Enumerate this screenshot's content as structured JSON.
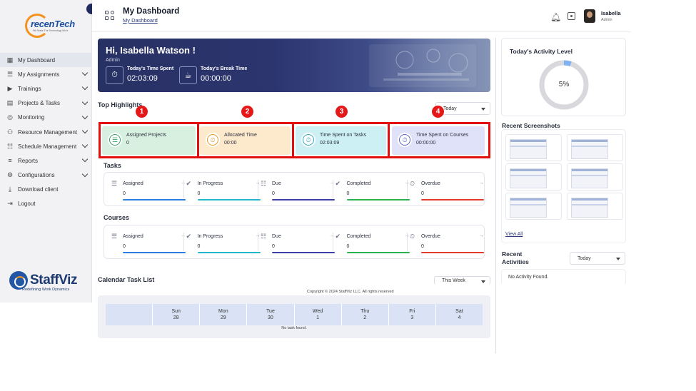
{
  "brand": {
    "top_logo_name": "recenTech",
    "top_logo_tag": "We Make The Technology Work",
    "bottom_logo_name": "StaffViz",
    "bottom_logo_tag": "Redefining Work Dynamics"
  },
  "sidebar": {
    "items": [
      {
        "label": "My Dashboard",
        "icon": "dashboard-icon",
        "active": true
      },
      {
        "label": "My Assignments",
        "icon": "assignments-icon"
      },
      {
        "label": "Trainings",
        "icon": "trainings-icon"
      },
      {
        "label": "Projects & Tasks",
        "icon": "projects-icon"
      },
      {
        "label": "Monitoring",
        "icon": "monitoring-icon"
      },
      {
        "label": "Resource Management",
        "icon": "resource-icon"
      },
      {
        "label": "Schedule Management",
        "icon": "schedule-icon"
      },
      {
        "label": "Reports",
        "icon": "reports-icon"
      },
      {
        "label": "Configurations",
        "icon": "configurations-icon"
      },
      {
        "label": "Download client",
        "icon": "download-icon"
      },
      {
        "label": "Logout",
        "icon": "logout-icon"
      }
    ]
  },
  "header": {
    "title": "My Dashboard",
    "breadcrumb": "My Dashboard",
    "user_name": "Isabella",
    "user_role": "Admin"
  },
  "banner": {
    "greeting": "Hi, Isabella Watson !",
    "role": "Admin",
    "time_spent_label": "Today's Time Spent",
    "time_spent_value": "02:03:09",
    "break_label": "Today's Break Time",
    "break_value": "00:00:00"
  },
  "highlights": {
    "title": "Top Highlights",
    "filter": "Today",
    "markers": [
      "1",
      "2",
      "3",
      "4"
    ],
    "cards": [
      {
        "label": "Assigned Projects",
        "value": "0",
        "color": "#d8f0df",
        "icon_color": "#3aa363"
      },
      {
        "label": "Allocated Time",
        "value": "00:00",
        "color": "#fde9cc",
        "icon_color": "#e39a2b"
      },
      {
        "label": "Time Spent on Tasks",
        "value": "02:03:09",
        "color": "#cdf0f5",
        "icon_color": "#2aa7bd"
      },
      {
        "label": "Time Spent on Courses",
        "value": "00:00:00",
        "color": "#e0e2fa",
        "icon_color": "#5a63c9"
      }
    ]
  },
  "tasks": {
    "title": "Tasks",
    "items": [
      {
        "label": "Assigned",
        "value": "0",
        "color": "#2a7de1"
      },
      {
        "label": "In Progress",
        "value": "0",
        "color": "#23b8c9"
      },
      {
        "label": "Due",
        "value": "0",
        "color": "#3d3fa8"
      },
      {
        "label": "Completed",
        "value": "0",
        "color": "#2ab24f"
      },
      {
        "label": "Overdue",
        "value": "0",
        "color": "#e23a2c"
      }
    ]
  },
  "courses": {
    "title": "Courses",
    "items": [
      {
        "label": "Assigned",
        "value": "0",
        "color": "#2a7de1"
      },
      {
        "label": "In Progress",
        "value": "0",
        "color": "#23b8c9"
      },
      {
        "label": "Due",
        "value": "0",
        "color": "#3d3fa8"
      },
      {
        "label": "Completed",
        "value": "0",
        "color": "#2ab24f"
      },
      {
        "label": "Overdue",
        "value": "0",
        "color": "#e23a2c"
      }
    ]
  },
  "calendar": {
    "title": "Calendar Task List",
    "filter": "This Week",
    "days": [
      {
        "name": "",
        "num": ""
      },
      {
        "name": "Sun",
        "num": "28"
      },
      {
        "name": "Mon",
        "num": "29"
      },
      {
        "name": "Tue",
        "num": "30"
      },
      {
        "name": "Wed",
        "num": "1"
      },
      {
        "name": "Thu",
        "num": "2"
      },
      {
        "name": "Fri",
        "num": "3"
      },
      {
        "name": "Sat",
        "num": "4"
      }
    ],
    "empty": "No task found."
  },
  "footer": "Copyright © 2024 StaffViz LLC. All rights reserved",
  "right": {
    "activity_title": "Today's Activity Level",
    "activity_value": "5%",
    "activity_fraction": 0.05,
    "screenshots_title": "Recent Screenshots",
    "view_all": "View All",
    "recent_title": "Recent Activities",
    "recent_filter": "Today",
    "no_activity": "No Activity Found."
  }
}
